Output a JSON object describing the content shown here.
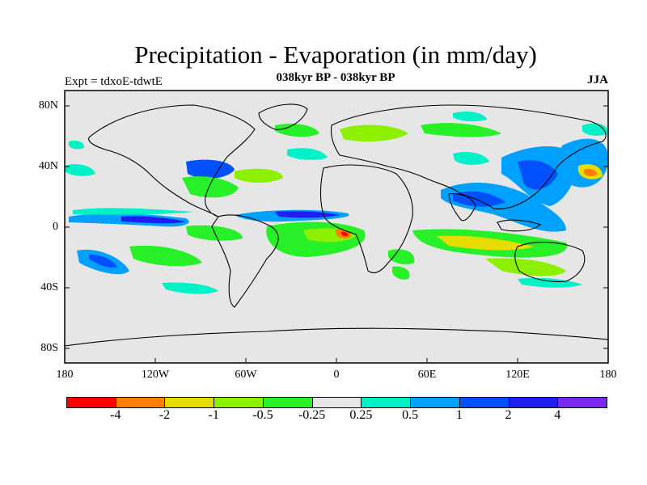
{
  "title": "Precipitation - Evaporation (in mm/day)",
  "subtitle": "038kyr BP - 038kyr BP",
  "experiment": "Expt = tdxoE-tdwtE",
  "season": "JJA",
  "lat_labels": [
    "80N",
    "40N",
    "0",
    "40S",
    "80S"
  ],
  "lon_labels": [
    "180",
    "120W",
    "60W",
    "0",
    "60E",
    "120E",
    "180"
  ],
  "colorbar": {
    "colors": [
      "#ff0000",
      "#ff7f00",
      "#e6dc00",
      "#8cf000",
      "#28f028",
      "#e6e6e6",
      "#00f0c8",
      "#00a0ff",
      "#0050ff",
      "#1e1ef0",
      "#7828f0"
    ],
    "labels": [
      "-4",
      "-2",
      "-1",
      "-0.5",
      "-0.25",
      "0.25",
      "0.5",
      "1",
      "2",
      "4"
    ]
  },
  "colors": {
    "background": "#e6e6e6",
    "frame": "#000000"
  }
}
